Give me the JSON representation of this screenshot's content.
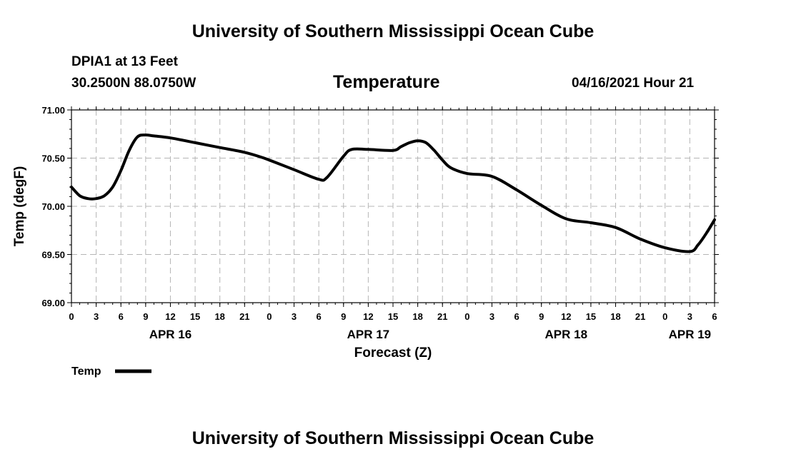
{
  "header": {
    "title_top": "University of Southern Mississippi Ocean Cube",
    "title_bottom": "University of Southern Mississippi Ocean Cube",
    "station": "DPIA1 at 13 Feet",
    "coords": "30.2500N  88.0750W",
    "datetime": "04/16/2021 Hour 21"
  },
  "chart_data": {
    "type": "line",
    "title": "Temperature",
    "xlabel": "Forecast (Z)",
    "ylabel": "Temp (degF)",
    "ylim": [
      69.0,
      71.0
    ],
    "xlim": [
      0,
      78
    ],
    "y_ticks": [
      "69.00",
      "69.50",
      "70.00",
      "70.50",
      "71.00"
    ],
    "y_tick_values": [
      69.0,
      69.5,
      70.0,
      70.5,
      71.0
    ],
    "x_tick_values": [
      0,
      3,
      6,
      9,
      12,
      15,
      18,
      21,
      24,
      27,
      30,
      33,
      36,
      39,
      42,
      45,
      48,
      51,
      54,
      57,
      60,
      63,
      66,
      69,
      72,
      75,
      78
    ],
    "x_tick_labels": [
      "0",
      "3",
      "6",
      "9",
      "12",
      "15",
      "18",
      "21",
      "0",
      "3",
      "6",
      "9",
      "12",
      "15",
      "18",
      "21",
      "0",
      "3",
      "6",
      "9",
      "12",
      "15",
      "18",
      "21",
      "0",
      "3",
      "6"
    ],
    "date_labels": [
      {
        "text": "APR 16",
        "x": 12
      },
      {
        "text": "APR 17",
        "x": 36
      },
      {
        "text": "APR 18",
        "x": 60
      },
      {
        "text": "APR 19",
        "x": 75
      }
    ],
    "grid": true,
    "legend_position": "bottom-left",
    "series": [
      {
        "name": "Temp",
        "color": "#000000",
        "x": [
          0,
          1,
          2,
          3,
          4,
          5,
          6,
          7,
          8,
          9,
          10,
          12,
          15,
          18,
          21,
          23,
          24,
          27,
          30,
          31,
          33,
          34,
          36,
          39,
          40,
          41,
          42,
          43,
          44,
          45,
          46,
          48,
          51,
          54,
          57,
          60,
          63,
          66,
          69,
          72,
          75,
          76,
          77,
          78
        ],
        "y": [
          70.2,
          70.11,
          70.08,
          70.08,
          70.11,
          70.2,
          70.37,
          70.58,
          70.72,
          70.74,
          70.73,
          70.71,
          70.66,
          70.61,
          70.56,
          70.51,
          70.48,
          70.38,
          70.28,
          70.3,
          70.52,
          70.59,
          70.59,
          70.58,
          70.62,
          70.66,
          70.68,
          70.66,
          70.58,
          70.48,
          70.4,
          70.34,
          70.31,
          70.17,
          70.01,
          69.87,
          69.83,
          69.78,
          69.66,
          69.57,
          69.53,
          69.6,
          69.72,
          69.86
        ]
      }
    ]
  }
}
